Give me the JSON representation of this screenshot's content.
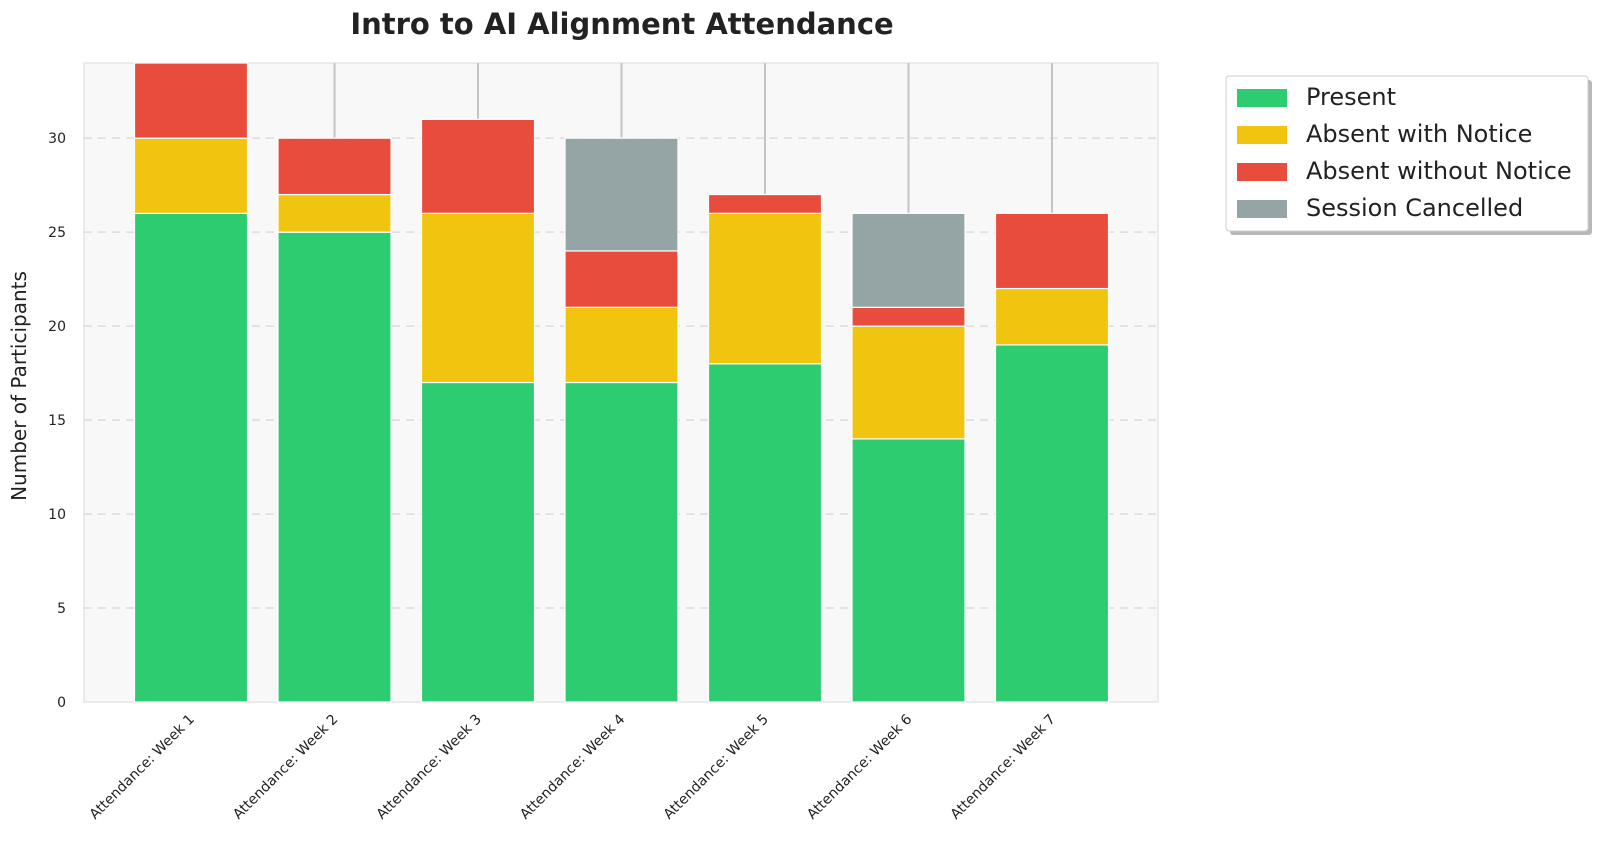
{
  "chart_data": {
    "type": "bar",
    "stacked": true,
    "title": "Intro to AI Alignment Attendance",
    "xlabel": "",
    "ylabel": "Number of Participants",
    "ylim": [
      0,
      34
    ],
    "yticks": [
      0,
      5,
      10,
      15,
      20,
      25,
      30
    ],
    "grid": true,
    "legend_position": "outside top-right",
    "categories": [
      "Attendance: Week 1",
      "Attendance: Week 2",
      "Attendance: Week 3",
      "Attendance: Week 4",
      "Attendance: Week 5",
      "Attendance: Week 6",
      "Attendance: Week 7"
    ],
    "series": [
      {
        "name": "Present",
        "color": "#2ecc71",
        "values": [
          26,
          25,
          17,
          17,
          18,
          14,
          19
        ]
      },
      {
        "name": "Absent with Notice",
        "color": "#f1c40f",
        "values": [
          4,
          2,
          9,
          4,
          8,
          6,
          3
        ]
      },
      {
        "name": "Absent without Notice",
        "color": "#e74c3c",
        "values": [
          4,
          3,
          5,
          3,
          1,
          1,
          4
        ]
      },
      {
        "name": "Session Cancelled",
        "color": "#95a5a6",
        "values": [
          0,
          0,
          0,
          6,
          0,
          5,
          0
        ]
      }
    ]
  }
}
